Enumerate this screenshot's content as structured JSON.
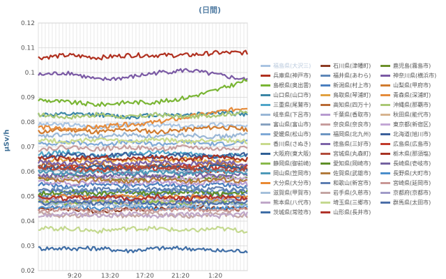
{
  "chart_data": {
    "type": "line",
    "title": "(日間)",
    "ylabel": "μSv/h",
    "xlabel": "",
    "ylim": [
      0.02,
      0.12
    ],
    "yticks": [
      "0.02",
      "0.03",
      "0.04",
      "0.05",
      "0.06",
      "0.07",
      "0.08",
      "0.09",
      "0.1",
      "0.11",
      "0.12"
    ],
    "xticks": [
      "9:20",
      "13:20",
      "17:20",
      "21:20",
      "1:20"
    ],
    "grid": true,
    "legend_position": "right",
    "series": [
      {
        "name": "福島県(大沢三)",
        "color": "#a9c4e2",
        "values": [
          0.079,
          0.079,
          0.078,
          0.079,
          0.079,
          0.078,
          0.079,
          0.078
        ]
      },
      {
        "name": "石川県(津幡町)",
        "color": "#8c3b23",
        "values": [
          0.045,
          0.045,
          0.044,
          0.045,
          0.045,
          0.046,
          0.045,
          0.045
        ]
      },
      {
        "name": "鹿児島(霧島市)",
        "color": "#6c8f2a",
        "values": [
          0.057,
          0.058,
          0.057,
          0.057,
          0.058,
          0.057,
          0.058,
          0.057
        ]
      },
      {
        "name": "兵庫県(神戸市)",
        "color": "#b0301f",
        "values": [
          0.106,
          0.107,
          0.106,
          0.107,
          0.107,
          0.107,
          0.108,
          0.108
        ]
      },
      {
        "name": "福井県(あわら)",
        "color": "#5d86b8",
        "values": [
          0.05,
          0.051,
          0.05,
          0.05,
          0.051,
          0.05,
          0.051,
          0.05
        ]
      },
      {
        "name": "神奈川県(横浜市)",
        "color": "#7a59a4",
        "values": [
          0.099,
          0.1,
          0.097,
          0.098,
          0.1,
          0.101,
          0.099,
          0.097
        ]
      },
      {
        "name": "島根県(奥出雲)",
        "color": "#79b533",
        "values": [
          0.089,
          0.088,
          0.087,
          0.088,
          0.088,
          0.09,
          0.093,
          0.097
        ]
      },
      {
        "name": "新潟県(村上市)",
        "color": "#4a7fbf",
        "values": [
          0.055,
          0.054,
          0.055,
          0.054,
          0.055,
          0.054,
          0.055,
          0.054
        ]
      },
      {
        "name": "山梨県(甲府市)",
        "color": "#d07b2f",
        "values": [
          0.076,
          0.077,
          0.076,
          0.077,
          0.076,
          0.077,
          0.078,
          0.077
        ]
      },
      {
        "name": "山口県(山口市)",
        "color": "#3b86a6",
        "values": [
          0.083,
          0.083,
          0.083,
          0.082,
          0.083,
          0.083,
          0.084,
          0.083
        ]
      },
      {
        "name": "鳥取県(琴浦町)",
        "color": "#e1a140",
        "values": [
          0.064,
          0.065,
          0.064,
          0.065,
          0.064,
          0.065,
          0.064,
          0.065
        ]
      },
      {
        "name": "青森県(深浦町)",
        "color": "#e58b3b",
        "values": [
          0.078,
          0.077,
          0.078,
          0.079,
          0.08,
          0.082,
          0.084,
          0.086
        ]
      },
      {
        "name": "三重県(尾鷲市)",
        "color": "#4fa5c8",
        "values": [
          0.067,
          0.068,
          0.066,
          0.067,
          0.068,
          0.067,
          0.066,
          0.067
        ]
      },
      {
        "name": "高知県(四万十)",
        "color": "#b86a34",
        "values": [
          0.063,
          0.062,
          0.063,
          0.062,
          0.063,
          0.062,
          0.063,
          0.062
        ]
      },
      {
        "name": "沖縄県(那覇市)",
        "color": "#aac875",
        "values": [
          0.083,
          0.082,
          0.083,
          0.082,
          0.083,
          0.082,
          0.083,
          0.084
        ]
      },
      {
        "name": "岐阜県(下呂市)",
        "color": "#9ab7d6",
        "values": [
          0.074,
          0.075,
          0.074,
          0.075,
          0.074,
          0.075,
          0.074,
          0.075
        ]
      },
      {
        "name": "千葉県(香取市)",
        "color": "#b79bd0",
        "values": [
          0.056,
          0.055,
          0.056,
          0.055,
          0.056,
          0.055,
          0.056,
          0.055
        ]
      },
      {
        "name": "秋田県(能代市)",
        "color": "#d7b48f",
        "values": [
          0.048,
          0.047,
          0.048,
          0.047,
          0.048,
          0.047,
          0.048,
          0.047
        ]
      },
      {
        "name": "富山県(富山市)",
        "color": "#88a2c0",
        "values": [
          0.061,
          0.06,
          0.061,
          0.06,
          0.061,
          0.06,
          0.061,
          0.06
        ]
      },
      {
        "name": "奈良県(奈良市)",
        "color": "#c79d9d",
        "values": [
          0.069,
          0.07,
          0.069,
          0.07,
          0.069,
          0.07,
          0.069,
          0.07
        ]
      },
      {
        "name": "東京都(新宿区)",
        "color": "#c3a7d5",
        "values": [
          0.058,
          0.057,
          0.058,
          0.057,
          0.058,
          0.057,
          0.058,
          0.057
        ]
      },
      {
        "name": "愛媛県(松山市)",
        "color": "#7fa9d6",
        "values": [
          0.071,
          0.072,
          0.071,
          0.072,
          0.071,
          0.072,
          0.071,
          0.072
        ]
      },
      {
        "name": "福岡県(北九州)",
        "color": "#6d96c2",
        "values": [
          0.052,
          0.053,
          0.052,
          0.053,
          0.052,
          0.053,
          0.052,
          0.053
        ]
      },
      {
        "name": "北海道(旭川市)",
        "color": "#3a5f9a",
        "values": [
          0.066,
          0.067,
          0.066,
          0.067,
          0.066,
          0.067,
          0.066,
          0.067
        ]
      },
      {
        "name": "香川県(さぬき)",
        "color": "#c8da8d",
        "values": [
          0.073,
          0.072,
          0.073,
          0.072,
          0.073,
          0.072,
          0.073,
          0.072
        ]
      },
      {
        "name": "徳島県(三好市)",
        "color": "#7d64a8",
        "values": [
          0.064,
          0.063,
          0.064,
          0.063,
          0.064,
          0.063,
          0.064,
          0.063
        ]
      },
      {
        "name": "広島県(広島市)",
        "color": "#c13a2b",
        "values": [
          0.061,
          0.062,
          0.061,
          0.062,
          0.061,
          0.062,
          0.061,
          0.062
        ]
      },
      {
        "name": "大阪府(東大阪)",
        "color": "#2f5f95",
        "values": [
          0.062,
          0.061,
          0.062,
          0.061,
          0.062,
          0.061,
          0.062,
          0.061
        ]
      },
      {
        "name": "宮城県(丸森町)",
        "color": "#b24b3a",
        "values": [
          0.062,
          0.061,
          0.06,
          0.061,
          0.062,
          0.061,
          0.06,
          0.061
        ]
      },
      {
        "name": "栃木県(那須塩)",
        "color": "#a73323",
        "values": [
          0.066,
          0.065,
          0.066,
          0.065,
          0.066,
          0.065,
          0.066,
          0.065
        ]
      },
      {
        "name": "静岡県(御前崎)",
        "color": "#89b94b",
        "values": [
          0.048,
          0.047,
          0.048,
          0.047,
          0.048,
          0.047,
          0.048,
          0.047
        ]
      },
      {
        "name": "愛知県(岡崎市)",
        "color": "#5e8f27",
        "values": [
          0.051,
          0.052,
          0.051,
          0.052,
          0.051,
          0.052,
          0.051,
          0.052
        ]
      },
      {
        "name": "長崎県(壱岐市)",
        "color": "#7462a0",
        "values": [
          0.058,
          0.059,
          0.058,
          0.059,
          0.058,
          0.059,
          0.058,
          0.059
        ]
      },
      {
        "name": "岡山県(笠岡市)",
        "color": "#4d9ab8",
        "values": [
          0.06,
          0.059,
          0.06,
          0.059,
          0.06,
          0.059,
          0.06,
          0.059
        ]
      },
      {
        "name": "佐賀県(武雄市)",
        "color": "#b27a3c",
        "values": [
          0.057,
          0.056,
          0.057,
          0.056,
          0.057,
          0.056,
          0.057,
          0.056
        ]
      },
      {
        "name": "長野県(大町市)",
        "color": "#4a8ecb",
        "values": [
          0.045,
          0.046,
          0.045,
          0.046,
          0.045,
          0.046,
          0.045,
          0.046
        ]
      },
      {
        "name": "大分県(大分市)",
        "color": "#e98a33",
        "values": [
          0.049,
          0.05,
          0.049,
          0.05,
          0.049,
          0.05,
          0.049,
          0.05
        ]
      },
      {
        "name": "和歌山(新宮市)",
        "color": "#5d7eb1",
        "values": [
          0.053,
          0.052,
          0.053,
          0.052,
          0.053,
          0.052,
          0.053,
          0.052
        ]
      },
      {
        "name": "宮崎県(延岡市)",
        "color": "#c99795",
        "values": [
          0.044,
          0.045,
          0.044,
          0.045,
          0.044,
          0.045,
          0.044,
          0.045
        ]
      },
      {
        "name": "滋賀県(甲賀市)",
        "color": "#a5c0db",
        "values": [
          0.047,
          0.046,
          0.047,
          0.046,
          0.047,
          0.046,
          0.047,
          0.046
        ]
      },
      {
        "name": "岩手県(久慈市)",
        "color": "#c4a5a3",
        "values": [
          0.043,
          0.042,
          0.043,
          0.042,
          0.043,
          0.042,
          0.043,
          0.042
        ]
      },
      {
        "name": "京都府(京都市)",
        "color": "#a09bc8",
        "values": [
          0.049,
          0.048,
          0.049,
          0.048,
          0.049,
          0.048,
          0.049,
          0.048
        ]
      },
      {
        "name": "熊本県(八代市)",
        "color": "#c0a7c8",
        "values": [
          0.042,
          0.043,
          0.042,
          0.043,
          0.042,
          0.043,
          0.042,
          0.043
        ]
      },
      {
        "name": "埼玉県(三郷市)",
        "color": "#c4d98f",
        "values": [
          0.037,
          0.037,
          0.036,
          0.037,
          0.037,
          0.036,
          0.037,
          0.036
        ]
      },
      {
        "name": "群馬県(太田市)",
        "color": "#4c6ea8",
        "values": [
          0.047,
          0.048,
          0.047,
          0.048,
          0.047,
          0.048,
          0.047,
          0.048
        ]
      },
      {
        "name": "茨城県(常陸市)",
        "color": "#3f6ea6",
        "values": [
          0.029,
          0.029,
          0.029,
          0.028,
          0.029,
          0.029,
          0.028,
          0.028
        ]
      },
      {
        "name": "山形県(長井市)",
        "color": "#b0332a",
        "values": [
          0.05,
          0.049,
          0.05,
          0.049,
          0.05,
          0.049,
          0.05,
          0.049
        ]
      }
    ]
  }
}
